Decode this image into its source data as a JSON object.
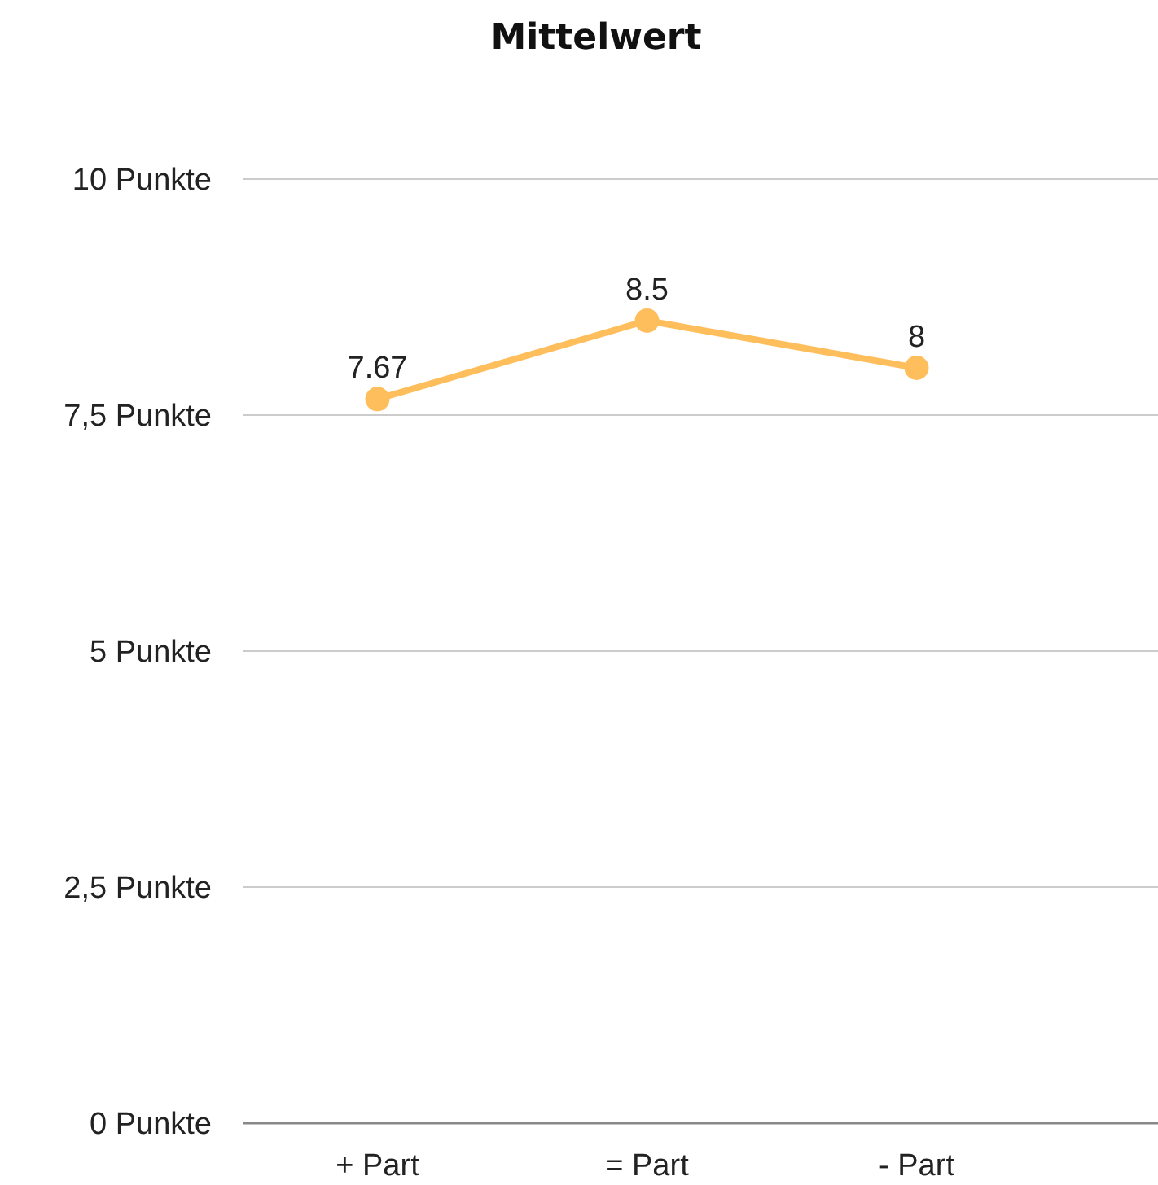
{
  "chart_data": {
    "type": "line",
    "title": "Mittelwert",
    "categories": [
      "+ Part",
      "= Part",
      "- Part"
    ],
    "series": [
      {
        "color": "#ffbe5c",
        "values": [
          7.67,
          8.5,
          8
        ]
      }
    ],
    "ylim": [
      0,
      10
    ],
    "yticks": [
      {
        "value": 0,
        "label": "0 Punkte"
      },
      {
        "value": 2.5,
        "label": "2,5 Punkte"
      },
      {
        "value": 5,
        "label": "5 Punkte"
      },
      {
        "value": 7.5,
        "label": "7,5 Punkte"
      },
      {
        "value": 10,
        "label": "10 Punkte"
      }
    ],
    "grid": "y",
    "marker": "circle",
    "line_style": "solid",
    "data_labels": true
  }
}
